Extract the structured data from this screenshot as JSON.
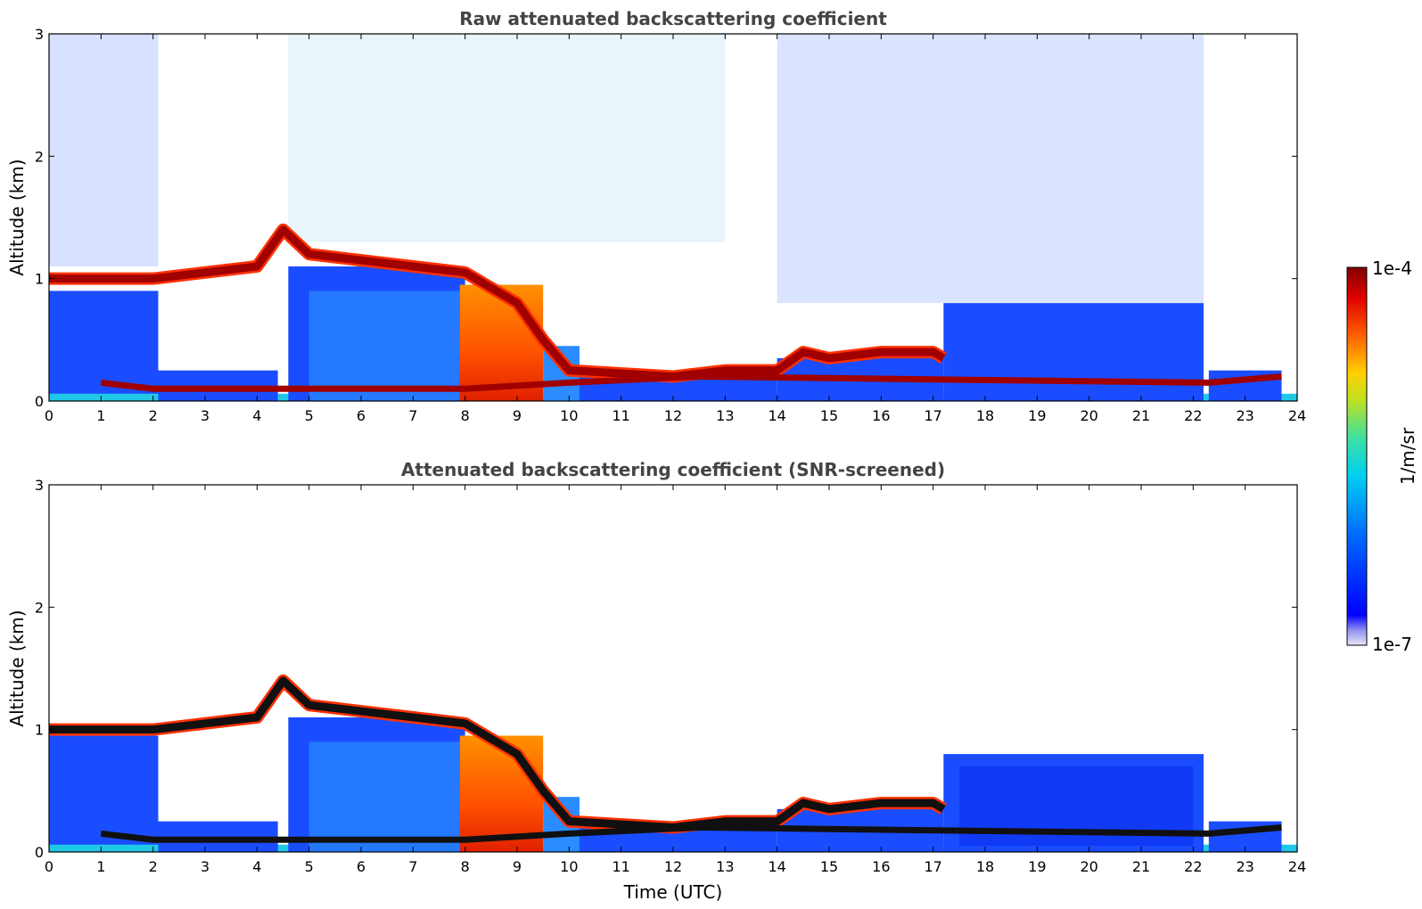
{
  "chart_data": [
    {
      "type": "heatmap",
      "title": "Raw attenuated backscattering coefficient",
      "xlabel": "",
      "ylabel": "Altitude (km)",
      "xlim": [
        0,
        24
      ],
      "ylim": [
        0,
        3
      ],
      "xticks": [
        "0",
        "1",
        "2",
        "3",
        "4",
        "5",
        "6",
        "7",
        "8",
        "9",
        "10",
        "11",
        "12",
        "13",
        "14",
        "15",
        "16",
        "17",
        "18",
        "19",
        "20",
        "21",
        "22",
        "23",
        "24"
      ],
      "yticks": [
        "0",
        "1",
        "2",
        "3"
      ],
      "screened": false,
      "cloud_layer_km": [
        [
          0,
          1.0
        ],
        [
          2,
          1.0
        ],
        [
          4,
          1.1
        ],
        [
          4.5,
          1.4
        ],
        [
          5,
          1.2
        ],
        [
          6,
          1.15
        ],
        [
          7,
          1.1
        ],
        [
          8,
          1.05
        ],
        [
          9,
          0.8
        ],
        [
          9.5,
          0.5
        ],
        [
          10,
          0.25
        ],
        [
          12,
          0.2
        ],
        [
          13,
          0.25
        ],
        [
          14,
          0.25
        ],
        [
          14.5,
          0.4
        ],
        [
          15,
          0.35
        ],
        [
          16,
          0.4
        ],
        [
          17,
          0.4
        ],
        [
          17.2,
          0.35
        ]
      ],
      "low_layer_km": [
        [
          1,
          0.15
        ],
        [
          2,
          0.1
        ],
        [
          4.5,
          0.1
        ],
        [
          8,
          0.1
        ],
        [
          10,
          0.15
        ],
        [
          12.5,
          0.2
        ],
        [
          22.3,
          0.15
        ],
        [
          23.7,
          0.2
        ]
      ]
    },
    {
      "type": "heatmap",
      "title": "Attenuated backscattering coefficient (SNR-screened)",
      "xlabel": "Time (UTC)",
      "ylabel": "Altitude (km)",
      "xlim": [
        0,
        24
      ],
      "ylim": [
        0,
        3
      ],
      "xticks": [
        "0",
        "1",
        "2",
        "3",
        "4",
        "5",
        "6",
        "7",
        "8",
        "9",
        "10",
        "11",
        "12",
        "13",
        "14",
        "15",
        "16",
        "17",
        "18",
        "19",
        "20",
        "21",
        "22",
        "23",
        "24"
      ],
      "yticks": [
        "0",
        "1",
        "2",
        "3"
      ],
      "screened": true
    }
  ],
  "colorbar": {
    "label": "1/m/sr",
    "max_label": "1e-4",
    "min_label": "1e-7",
    "colormap": "jet",
    "colors": [
      "#e8e8f8",
      "#0000ff",
      "#00aaff",
      "#00e0c0",
      "#a0e040",
      "#ffe000",
      "#ff7000",
      "#e00000",
      "#800000"
    ]
  }
}
